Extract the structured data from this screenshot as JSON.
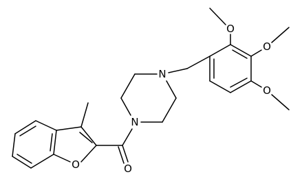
{
  "labels": [
    "O",
    "O",
    "O",
    "N",
    "N",
    "O",
    "O"
  ]
}
